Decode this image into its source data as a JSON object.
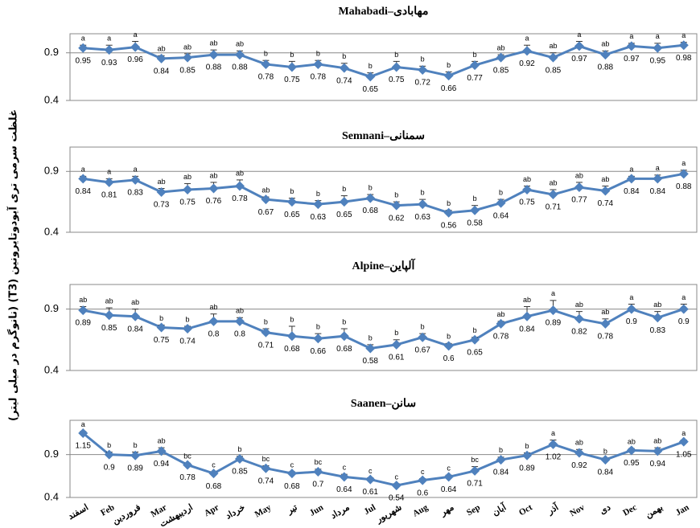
{
  "y_label": "غلظت سرمی تری آیودوتایرونین (T3) (نانوگرم در میلی لیتر)",
  "chart_data": [
    {
      "type": "line",
      "title": "Mahabadi–مهابادی",
      "color": "#4f81bd",
      "ylim": [
        0.4,
        1.1
      ],
      "yticks": [
        0.4,
        0.9
      ],
      "grid": true,
      "values": [
        0.95,
        0.93,
        0.96,
        0.84,
        0.85,
        0.88,
        0.88,
        0.78,
        0.75,
        0.78,
        0.74,
        0.65,
        0.75,
        0.72,
        0.66,
        0.77,
        0.85,
        0.92,
        0.85,
        0.97,
        0.88,
        0.97,
        0.95,
        0.98
      ],
      "errors": [
        0.03,
        0.05,
        0.06,
        0.03,
        0.04,
        0.05,
        0.04,
        0.04,
        0.06,
        0.04,
        0.05,
        0.04,
        0.06,
        0.04,
        0.04,
        0.04,
        0.03,
        0.06,
        0.05,
        0.05,
        0.04,
        0.03,
        0.05,
        0.03
      ],
      "letters": [
        "a",
        "a",
        "a",
        "ab",
        "ab",
        "ab",
        "ab",
        "b",
        "b",
        "b",
        "b",
        "b",
        "b",
        "b",
        "b",
        "b",
        "ab",
        "a",
        "ab",
        "a",
        "ab",
        "a",
        "a",
        "a"
      ]
    },
    {
      "type": "line",
      "title": "Semnani–سمنانی",
      "color": "#4f81bd",
      "ylim": [
        0.4,
        1.1
      ],
      "yticks": [
        0.4,
        0.9
      ],
      "grid": true,
      "values": [
        0.84,
        0.81,
        0.83,
        0.73,
        0.75,
        0.76,
        0.78,
        0.67,
        0.65,
        0.63,
        0.65,
        0.68,
        0.62,
        0.63,
        0.56,
        0.58,
        0.64,
        0.75,
        0.71,
        0.77,
        0.74,
        0.84,
        0.84,
        0.88
      ],
      "errors": [
        0.02,
        0.03,
        0.03,
        0.03,
        0.05,
        0.05,
        0.05,
        0.02,
        0.03,
        0.03,
        0.05,
        0.03,
        0.03,
        0.04,
        0.02,
        0.04,
        0.03,
        0.03,
        0.04,
        0.04,
        0.04,
        0.02,
        0.03,
        0.03
      ],
      "letters": [
        "a",
        "a",
        "a",
        "ab",
        "ab",
        "ab",
        "ab",
        "ab",
        "b",
        "b",
        "b",
        "b",
        "b",
        "b",
        "b",
        "b",
        "b",
        "ab",
        "ab",
        "ab",
        "ab",
        "a",
        "a",
        "a"
      ]
    },
    {
      "type": "line",
      "title": "Alpine–آلپاین",
      "color": "#4f81bd",
      "ylim": [
        0.4,
        1.1
      ],
      "yticks": [
        0.4,
        0.9
      ],
      "grid": true,
      "values": [
        0.89,
        0.85,
        0.84,
        0.75,
        0.74,
        0.8,
        0.8,
        0.71,
        0.68,
        0.66,
        0.68,
        0.58,
        0.61,
        0.67,
        0.6,
        0.65,
        0.78,
        0.84,
        0.89,
        0.82,
        0.78,
        0.9,
        0.83,
        0.9
      ],
      "errors": [
        0.03,
        0.06,
        0.06,
        0.02,
        0.02,
        0.06,
        0.03,
        0.03,
        0.08,
        0.04,
        0.06,
        0.03,
        0.04,
        0.03,
        0.02,
        0.02,
        0.02,
        0.08,
        0.08,
        0.06,
        0.04,
        0.04,
        0.05,
        0.04
      ],
      "letters": [
        "ab",
        "ab",
        "ab",
        "b",
        "b",
        "ab",
        "ab",
        "b",
        "b",
        "b",
        "b",
        "b",
        "b",
        "b",
        "b",
        "b",
        "ab",
        "ab",
        "a",
        "ab",
        "ab",
        "a",
        "ab",
        "a"
      ]
    },
    {
      "type": "line",
      "title": "Saanen–سانن",
      "color": "#4f81bd",
      "ylim": [
        0.4,
        1.3
      ],
      "yticks": [
        0.4,
        0.9
      ],
      "grid": true,
      "categories": [
        "اسفند",
        "Feb",
        "فروردین",
        "Mar",
        "اردیبهشت",
        "Apr",
        "خرداد",
        "May",
        "تیر",
        "Jun",
        "مرداد",
        "Jul",
        "شهریور",
        "Aug",
        "مهر",
        "Sep",
        "آبان",
        "Oct",
        "آذر",
        "Nov",
        "دی",
        "Dec",
        "بهمن",
        "Jan"
      ],
      "values": [
        1.15,
        0.9,
        0.89,
        0.94,
        0.78,
        0.68,
        0.85,
        0.74,
        0.68,
        0.7,
        0.64,
        0.61,
        0.54,
        0.6,
        0.64,
        0.71,
        0.84,
        0.89,
        1.02,
        0.92,
        0.84,
        0.95,
        0.94,
        1.05
      ],
      "errors": [
        0.02,
        0.03,
        0.04,
        0.04,
        0.02,
        0.02,
        0.03,
        0.03,
        0.02,
        0.03,
        0.03,
        0.02,
        0.02,
        0.02,
        0.02,
        0.05,
        0.03,
        0.03,
        0.05,
        0.04,
        0.02,
        0.02,
        0.04,
        0.02
      ],
      "letters": [
        "a",
        "b",
        "b",
        "ab",
        "bc",
        "c",
        "b",
        "bc",
        "c",
        "bc",
        "c",
        "c",
        "c",
        "c",
        "c",
        "bc",
        "b",
        "b",
        "a",
        "ab",
        "b",
        "ab",
        "ab",
        "a"
      ]
    }
  ]
}
